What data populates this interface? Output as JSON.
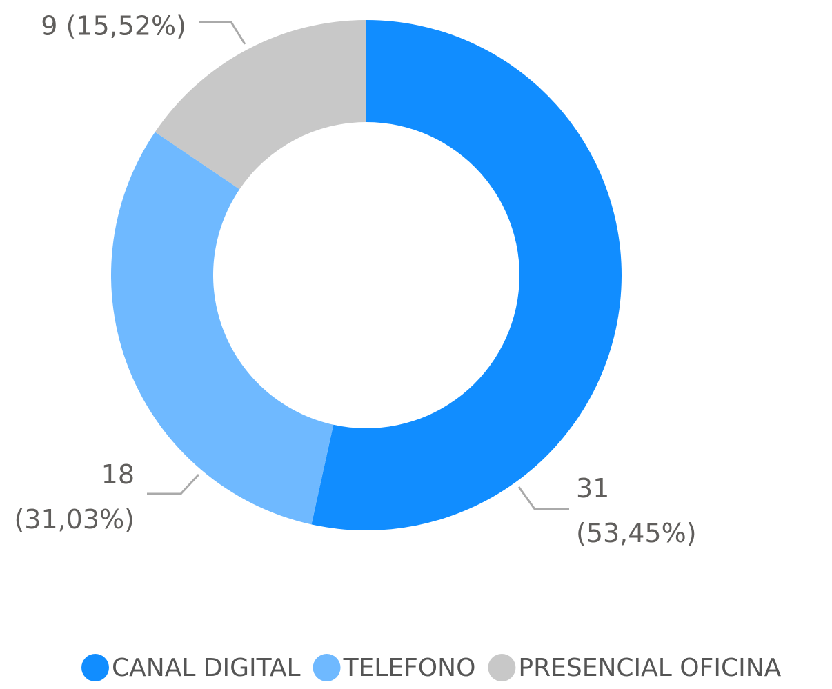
{
  "chart_data": {
    "type": "donut",
    "categories": [
      "CANAL DIGITAL",
      "TELEFONO",
      "PRESENCIAL OFICINA"
    ],
    "values": [
      31,
      18,
      9
    ],
    "value_labels": [
      "31 (53,45%)",
      "18 (31,03%)",
      "9 (15,52%)"
    ],
    "colors": [
      "#118dff",
      "#6fb9ff",
      "#c8c8c8"
    ],
    "legend": "bottom"
  }
}
